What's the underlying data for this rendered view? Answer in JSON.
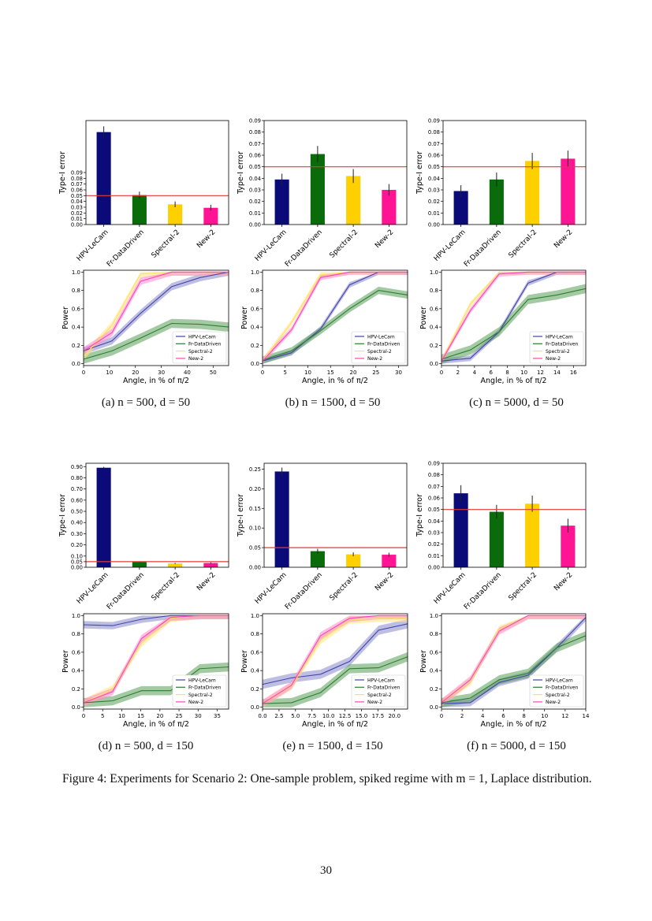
{
  "caption": "Figure 4: Experiments for Scenario 2: One-sample problem, spiked regime with m = 1, Laplace distribution.",
  "page_number": "30",
  "subcaptions": [
    "(a) n = 500,  d = 50",
    "(b) n = 1500,  d = 50",
    "(c) n = 5000,  d = 50",
    "(d) n = 500,  d = 150",
    "(e) n = 1500,  d = 150",
    "(f) n = 5000,  d = 150"
  ],
  "methods": [
    "HPV-LeCam",
    "Fr-DataDriven",
    "Spectral-2",
    "New-2"
  ],
  "colors": {
    "bar": [
      "#0a0a78",
      "#0a6b0a",
      "#ffd000",
      "#ff1493"
    ],
    "line": [
      "#4444aa",
      "#2e7d32",
      "#ffe066",
      "#ff44bb"
    ],
    "band": [
      "#8888cc",
      "#5a9e5a",
      "#ffe680",
      "#ff88cc"
    ],
    "reference": "#e53935"
  },
  "chart_data": [
    {
      "type": "bar",
      "panel": "a",
      "ylabel": "Type-I error",
      "ylim": [
        0,
        0.18
      ],
      "reference": 0.05,
      "yticks": [
        "0.00",
        "0.01",
        "0.02",
        "0.03",
        "0.04",
        "0.05",
        "0.06",
        "0.07",
        "0.08",
        "0.09"
      ],
      "ytick_values": [
        0,
        0.01,
        0.02,
        0.03,
        0.04,
        0.05,
        0.06,
        0.07,
        0.08,
        0.09
      ],
      "categories": [
        "HPV-LeCam",
        "Fr-DataDriven",
        "Spectral-2",
        "New-2"
      ],
      "values": [
        0.16,
        0.051,
        0.035,
        0.029
      ],
      "errors": [
        0.01,
        0.006,
        0.005,
        0.005
      ]
    },
    {
      "type": "bar",
      "panel": "b",
      "ylabel": "Type-I error",
      "ylim": [
        0,
        0.09
      ],
      "reference": 0.05,
      "yticks": [
        "0.00",
        "0.01",
        "0.02",
        "0.03",
        "0.04",
        "0.05",
        "0.06",
        "0.07",
        "0.08",
        "0.09"
      ],
      "ytick_values": [
        0,
        0.01,
        0.02,
        0.03,
        0.04,
        0.05,
        0.06,
        0.07,
        0.08,
        0.09
      ],
      "categories": [
        "HPV-LeCam",
        "Fr-DataDriven",
        "Spectral-2",
        "New-2"
      ],
      "values": [
        0.039,
        0.061,
        0.042,
        0.03
      ],
      "errors": [
        0.005,
        0.007,
        0.006,
        0.005
      ]
    },
    {
      "type": "bar",
      "panel": "c",
      "ylabel": "Type-I error",
      "ylim": [
        0,
        0.09
      ],
      "reference": 0.05,
      "yticks": [
        "0.00",
        "0.01",
        "0.02",
        "0.03",
        "0.04",
        "0.05",
        "0.06",
        "0.07",
        "0.08",
        "0.09"
      ],
      "ytick_values": [
        0,
        0.01,
        0.02,
        0.03,
        0.04,
        0.05,
        0.06,
        0.07,
        0.08,
        0.09
      ],
      "categories": [
        "HPV-LeCam",
        "Fr-DataDriven",
        "Spectral-2",
        "New-2"
      ],
      "values": [
        0.029,
        0.039,
        0.055,
        0.057
      ],
      "errors": [
        0.005,
        0.006,
        0.007,
        0.007
      ]
    },
    {
      "type": "line",
      "panel": "a",
      "ylabel": "Power",
      "xlabel": "Angle, in % of π/2",
      "xlim": [
        0,
        56
      ],
      "ylim": [
        -0.02,
        1.02
      ],
      "xticks": [
        "0",
        "10",
        "20",
        "30",
        "40",
        "50"
      ],
      "xtick_values": [
        0,
        10,
        20,
        30,
        40,
        50
      ],
      "yticks": [
        "0.0",
        "0.2",
        "0.4",
        "0.6",
        "0.8",
        "1.0"
      ],
      "ytick_values": [
        0,
        0.2,
        0.4,
        0.6,
        0.8,
        1.0
      ],
      "x": [
        0,
        11,
        22,
        34,
        45,
        56
      ],
      "series": [
        {
          "name": "HPV-LeCam",
          "values": [
            0.14,
            0.25,
            0.55,
            0.84,
            0.94,
            1.0
          ],
          "band": 0.04
        },
        {
          "name": "Fr-DataDriven",
          "values": [
            0.05,
            0.14,
            0.28,
            0.44,
            0.43,
            0.4
          ],
          "band": 0.05
        },
        {
          "name": "Spectral-2",
          "values": [
            0.08,
            0.42,
            0.98,
            1.0,
            1.0,
            1.0
          ],
          "band": 0.04
        },
        {
          "name": "New-2",
          "values": [
            0.14,
            0.34,
            0.9,
            1.0,
            1.0,
            1.0
          ],
          "band": 0.04
        }
      ]
    },
    {
      "type": "line",
      "panel": "b",
      "ylabel": "Power",
      "xlabel": "Angle, in % of π/2",
      "xlim": [
        0,
        32
      ],
      "ylim": [
        -0.02,
        1.02
      ],
      "xticks": [
        "0",
        "5",
        "10",
        "15",
        "20",
        "25",
        "30"
      ],
      "xtick_values": [
        0,
        5,
        10,
        15,
        20,
        25,
        30
      ],
      "yticks": [
        "0.0",
        "0.2",
        "0.4",
        "0.6",
        "0.8",
        "1.0"
      ],
      "ytick_values": [
        0,
        0.2,
        0.4,
        0.6,
        0.8,
        1.0
      ],
      "x": [
        0,
        6.4,
        12.8,
        19.2,
        25.6,
        32
      ],
      "series": [
        {
          "name": "HPV-LeCam",
          "values": [
            0.03,
            0.12,
            0.38,
            0.86,
            1.0,
            1.0
          ],
          "band": 0.03
        },
        {
          "name": "Fr-DataDriven",
          "values": [
            0.04,
            0.14,
            0.36,
            0.6,
            0.8,
            0.75
          ],
          "band": 0.04
        },
        {
          "name": "Spectral-2",
          "values": [
            0.03,
            0.45,
            0.97,
            1.0,
            1.0,
            1.0
          ],
          "band": 0.03
        },
        {
          "name": "New-2",
          "values": [
            0.03,
            0.37,
            0.94,
            1.0,
            1.0,
            1.0
          ],
          "band": 0.03
        }
      ]
    },
    {
      "type": "line",
      "panel": "c",
      "ylabel": "Power",
      "xlabel": "Angle, in % of π/2",
      "xlim": [
        0,
        17.5
      ],
      "ylim": [
        -0.02,
        1.02
      ],
      "xticks": [
        "0",
        "2",
        "4",
        "6",
        "8",
        "10",
        "12",
        "14",
        "16"
      ],
      "xtick_values": [
        0,
        2,
        4,
        6,
        8,
        10,
        12,
        14,
        16
      ],
      "yticks": [
        "0.0",
        "0.2",
        "0.4",
        "0.6",
        "0.8",
        "1.0"
      ],
      "ytick_values": [
        0,
        0.2,
        0.4,
        0.6,
        0.8,
        1.0
      ],
      "x": [
        0,
        3.5,
        7.0,
        10.5,
        14.0,
        17.5
      ],
      "series": [
        {
          "name": "HPV-LeCam",
          "values": [
            0.03,
            0.06,
            0.35,
            0.88,
            1.0,
            1.0
          ],
          "band": 0.03
        },
        {
          "name": "Fr-DataDriven",
          "values": [
            0.05,
            0.15,
            0.35,
            0.7,
            0.75,
            0.82
          ],
          "band": 0.05
        },
        {
          "name": "Spectral-2",
          "values": [
            0.03,
            0.65,
            1.0,
            1.0,
            1.0,
            1.0
          ],
          "band": 0.03
        },
        {
          "name": "New-2",
          "values": [
            0.03,
            0.58,
            0.98,
            1.0,
            1.0,
            1.0
          ],
          "band": 0.03
        }
      ]
    },
    {
      "type": "bar",
      "panel": "d",
      "ylabel": "Type-I error",
      "ylim": [
        0,
        0.93
      ],
      "reference": 0.05,
      "yticks": [
        "0.00",
        "0.05",
        "0.10",
        "0.20",
        "0.30",
        "0.40",
        "0.50",
        "0.60",
        "0.70",
        "0.80",
        "0.90"
      ],
      "ytick_values": [
        0,
        0.05,
        0.1,
        0.2,
        0.3,
        0.4,
        0.5,
        0.6,
        0.7,
        0.8,
        0.9
      ],
      "categories": [
        "HPV-LeCam",
        "Fr-DataDriven",
        "Spectral-2",
        "New-2"
      ],
      "values": [
        0.89,
        0.046,
        0.034,
        0.038
      ],
      "errors": [
        0.008,
        0.005,
        0.005,
        0.005
      ]
    },
    {
      "type": "bar",
      "panel": "e",
      "ylabel": "Type-I error",
      "ylim": [
        0,
        0.265
      ],
      "reference": 0.05,
      "yticks": [
        "0.00",
        "0.05",
        "0.10",
        "0.15",
        "0.20",
        "0.25"
      ],
      "ytick_values": [
        0,
        0.05,
        0.1,
        0.15,
        0.2,
        0.25
      ],
      "categories": [
        "HPV-LeCam",
        "Fr-DataDriven",
        "Spectral-2",
        "New-2"
      ],
      "values": [
        0.244,
        0.041,
        0.033,
        0.032
      ],
      "errors": [
        0.01,
        0.006,
        0.005,
        0.005
      ]
    },
    {
      "type": "bar",
      "panel": "f",
      "ylabel": "Type-I error",
      "ylim": [
        0,
        0.09
      ],
      "reference": 0.05,
      "yticks": [
        "0.00",
        "0.01",
        "0.02",
        "0.03",
        "0.04",
        "0.05",
        "0.06",
        "0.07",
        "0.08",
        "0.09"
      ],
      "ytick_values": [
        0,
        0.01,
        0.02,
        0.03,
        0.04,
        0.05,
        0.06,
        0.07,
        0.08,
        0.09
      ],
      "categories": [
        "HPV-LeCam",
        "Fr-DataDriven",
        "Spectral-2",
        "New-2"
      ],
      "values": [
        0.064,
        0.048,
        0.055,
        0.036
      ],
      "errors": [
        0.007,
        0.006,
        0.007,
        0.006
      ]
    },
    {
      "type": "line",
      "panel": "d",
      "ylabel": "Power",
      "xlabel": "Angle, in % of π/2",
      "xlim": [
        0,
        38
      ],
      "ylim": [
        -0.02,
        1.02
      ],
      "xticks": [
        "0",
        "5",
        "10",
        "15",
        "20",
        "25",
        "30",
        "35"
      ],
      "xtick_values": [
        0,
        5,
        10,
        15,
        20,
        25,
        30,
        35
      ],
      "yticks": [
        "0.0",
        "0.2",
        "0.4",
        "0.6",
        "0.8",
        "1.0"
      ],
      "ytick_values": [
        0,
        0.2,
        0.4,
        0.6,
        0.8,
        1.0
      ],
      "x": [
        0,
        7.6,
        15.2,
        22.8,
        30.4,
        38
      ],
      "series": [
        {
          "name": "HPV-LeCam",
          "values": [
            0.9,
            0.89,
            0.96,
            1.0,
            1.0,
            1.0
          ],
          "band": 0.04
        },
        {
          "name": "Fr-DataDriven",
          "values": [
            0.05,
            0.07,
            0.18,
            0.18,
            0.42,
            0.44
          ],
          "band": 0.05
        },
        {
          "name": "Spectral-2",
          "values": [
            0.05,
            0.2,
            0.7,
            0.97,
            1.0,
            1.0
          ],
          "band": 0.04
        },
        {
          "name": "New-2",
          "values": [
            0.05,
            0.17,
            0.75,
            0.98,
            1.0,
            1.0
          ],
          "band": 0.04
        }
      ]
    },
    {
      "type": "line",
      "panel": "e",
      "ylabel": "Power",
      "xlabel": "Angle, in % of π/2",
      "xlim": [
        0,
        22
      ],
      "ylim": [
        -0.02,
        1.02
      ],
      "xticks": [
        "0.0",
        "2.5",
        "5.0",
        "7.5",
        "10.0",
        "12.5",
        "15.0",
        "17.5",
        "20.0"
      ],
      "xtick_values": [
        0,
        2.5,
        5,
        7.5,
        10,
        12.5,
        15,
        17.5,
        20
      ],
      "yticks": [
        "0.0",
        "0.2",
        "0.4",
        "0.6",
        "0.8",
        "1.0"
      ],
      "ytick_values": [
        0,
        0.2,
        0.4,
        0.6,
        0.8,
        1.0
      ],
      "x": [
        0,
        4.4,
        8.8,
        13.2,
        17.6,
        22
      ],
      "series": [
        {
          "name": "HPV-LeCam",
          "values": [
            0.25,
            0.32,
            0.36,
            0.5,
            0.84,
            0.91
          ],
          "band": 0.05
        },
        {
          "name": "Fr-DataDriven",
          "values": [
            0.04,
            0.05,
            0.16,
            0.42,
            0.43,
            0.55
          ],
          "band": 0.05
        },
        {
          "name": "Spectral-2",
          "values": [
            0.04,
            0.23,
            0.73,
            0.95,
            0.97,
            0.97
          ],
          "band": 0.04
        },
        {
          "name": "New-2",
          "values": [
            0.04,
            0.24,
            0.78,
            0.97,
            1.0,
            1.0
          ],
          "band": 0.04
        }
      ]
    },
    {
      "type": "line",
      "panel": "f",
      "ylabel": "Power",
      "xlabel": "Angle, in % of π/2",
      "xlim": [
        0,
        14
      ],
      "ylim": [
        -0.02,
        1.02
      ],
      "xticks": [
        "0",
        "2",
        "4",
        "6",
        "8",
        "10",
        "12",
        "14"
      ],
      "xtick_values": [
        0,
        2,
        4,
        6,
        8,
        10,
        12,
        14
      ],
      "yticks": [
        "0.0",
        "0.2",
        "0.4",
        "0.6",
        "0.8",
        "1.0"
      ],
      "ytick_values": [
        0,
        0.2,
        0.4,
        0.6,
        0.8,
        1.0
      ],
      "x": [
        0,
        2.8,
        5.6,
        8.4,
        11.2,
        14
      ],
      "series": [
        {
          "name": "HPV-LeCam",
          "values": [
            0.04,
            0.05,
            0.27,
            0.35,
            0.65,
            0.98
          ],
          "band": 0.04
        },
        {
          "name": "Fr-DataDriven",
          "values": [
            0.05,
            0.1,
            0.3,
            0.37,
            0.65,
            0.78
          ],
          "band": 0.05
        },
        {
          "name": "Spectral-2",
          "values": [
            0.05,
            0.28,
            0.85,
            1.0,
            1.0,
            1.0
          ],
          "band": 0.04
        },
        {
          "name": "New-2",
          "values": [
            0.05,
            0.3,
            0.83,
            1.0,
            1.0,
            1.0
          ],
          "band": 0.04
        }
      ]
    }
  ]
}
